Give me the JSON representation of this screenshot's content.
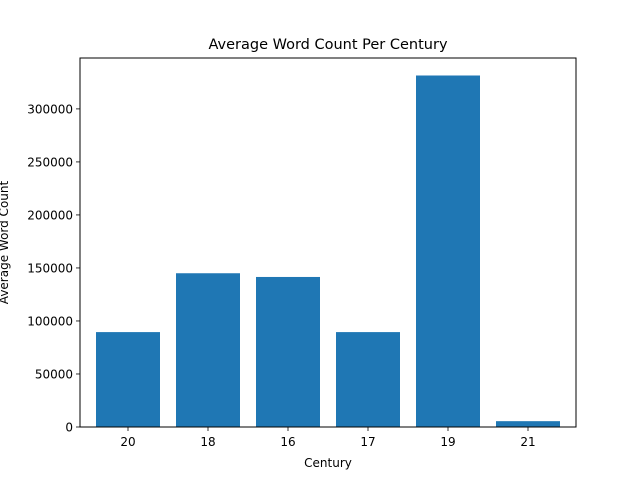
{
  "chart_data": {
    "type": "bar",
    "title": "Average Word Count Per Century",
    "xlabel": "Century",
    "ylabel": "Average Word Count",
    "categories": [
      "20",
      "18",
      "16",
      "17",
      "19",
      "21"
    ],
    "values": [
      89500,
      145000,
      141500,
      89500,
      331500,
      5500
    ],
    "ylim": [
      0,
      348000
    ],
    "yticks": [
      0,
      50000,
      100000,
      150000,
      200000,
      250000,
      300000
    ],
    "ytick_labels": [
      "0",
      "50000",
      "100000",
      "150000",
      "200000",
      "250000",
      "300000"
    ],
    "grid": false,
    "bar_color": "#1f77b4"
  }
}
